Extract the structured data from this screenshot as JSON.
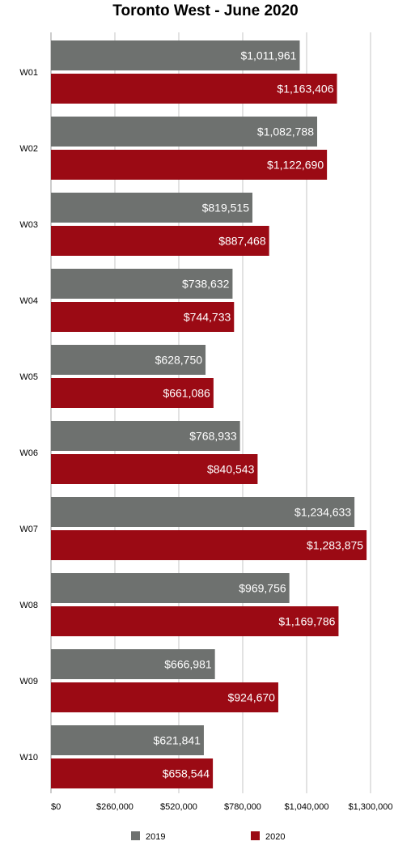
{
  "chart_data": {
    "type": "bar",
    "orientation": "horizontal",
    "title": "Toronto West - June 2020",
    "categories": [
      "W01",
      "W02",
      "W03",
      "W04",
      "W05",
      "W06",
      "W07",
      "W08",
      "W09",
      "W10"
    ],
    "series": [
      {
        "name": "2019",
        "color": "#6e716f",
        "values": [
          1011961,
          1082788,
          819515,
          738632,
          628750,
          768933,
          1234633,
          969756,
          666981,
          621841
        ],
        "labels": [
          "$1,011,961",
          "$1,082,788",
          "$819,515",
          "$738,632",
          "$628,750",
          "$768,933",
          "$1,234,633",
          "$969,756",
          "$666,981",
          "$621,841"
        ]
      },
      {
        "name": "2020",
        "color": "#9b0a14",
        "values": [
          1163406,
          1122690,
          887468,
          744733,
          661086,
          840543,
          1283875,
          1169786,
          924670,
          658544
        ],
        "labels": [
          "$1,163,406",
          "$1,122,690",
          "$887,468",
          "$744,733",
          "$661,086",
          "$840,543",
          "$1,283,875",
          "$1,169,786",
          "$924,670",
          "$658,544"
        ]
      }
    ],
    "xlim": [
      0,
      1300000
    ],
    "x_ticks": [
      0,
      260000,
      520000,
      780000,
      1040000,
      1300000
    ],
    "x_tick_labels": [
      "$0",
      "$260,000",
      "$520,000",
      "$780,000",
      "$1,040,000",
      "$1,300,000"
    ],
    "grid": true,
    "legend_position": "bottom"
  }
}
